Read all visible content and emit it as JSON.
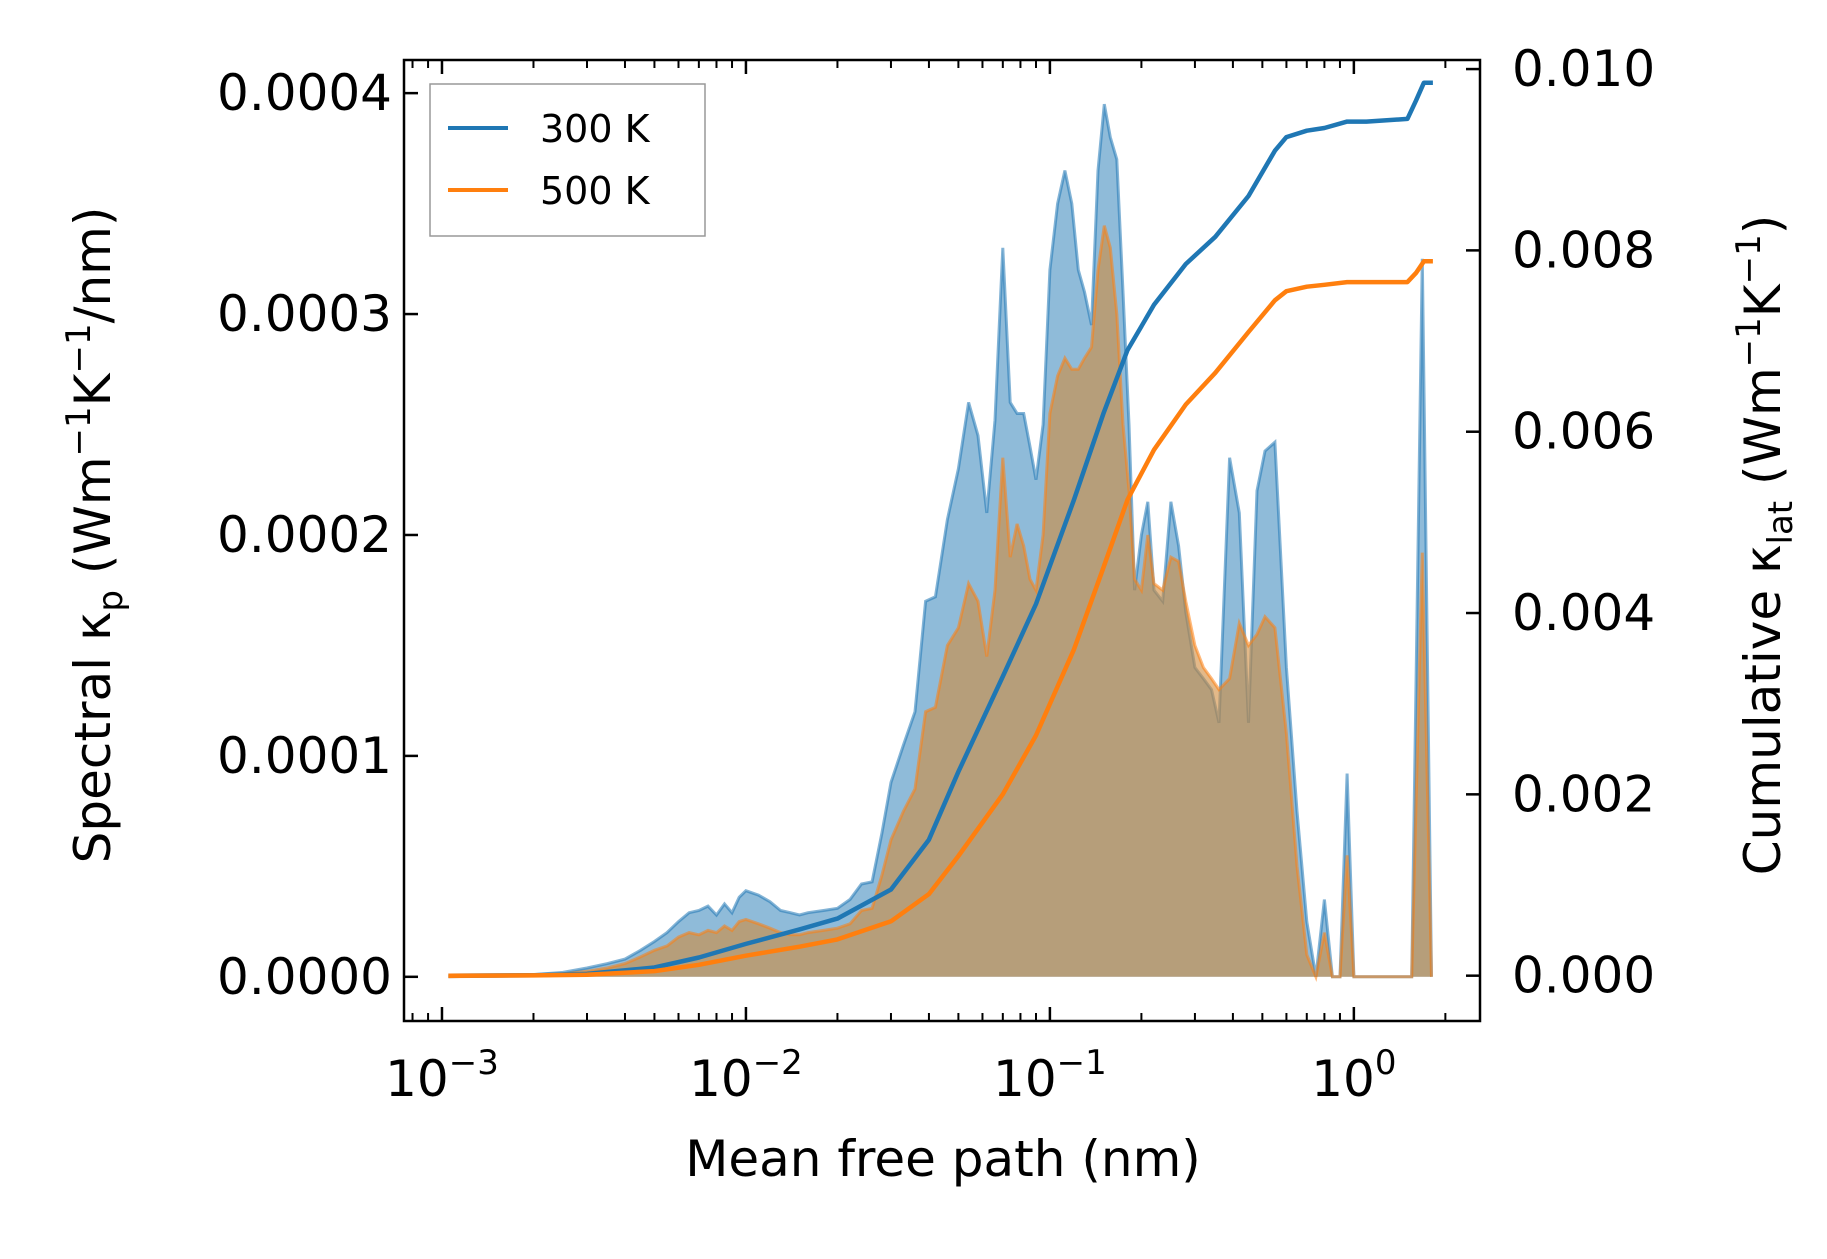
{
  "chart_data": {
    "type": "area",
    "xlabel": "Mean free path (nm)",
    "ylabel_left": {
      "main": "Spectral κ",
      "sub": "p",
      "unit_open": " (Wm",
      "sup1": "−1",
      "mid": "K",
      "sup2": "−1",
      "unit_close": "/nm)"
    },
    "ylabel_right": {
      "main": "Cumulative κ",
      "sub": "lat",
      "unit_open": " (Wm",
      "sup1": "−1",
      "mid": "K",
      "sup2": "−1",
      "unit_close": ")"
    },
    "x_scale": "log",
    "xlim": [
      0.00075,
      2.6
    ],
    "ylim_left": [
      -2e-05,
      0.000415
    ],
    "ylim_right": [
      -0.0005,
      0.0101
    ],
    "x_ticks": [
      {
        "value": 0.001,
        "base": "10",
        "exp": "−3"
      },
      {
        "value": 0.01,
        "base": "10",
        "exp": "−2"
      },
      {
        "value": 0.1,
        "base": "10",
        "exp": "−1"
      },
      {
        "value": 1,
        "base": "10",
        "exp": "0"
      }
    ],
    "y_ticks_left": [
      {
        "value": 0,
        "label": "0.0000"
      },
      {
        "value": 0.0001,
        "label": "0.0001"
      },
      {
        "value": 0.0002,
        "label": "0.0002"
      },
      {
        "value": 0.0003,
        "label": "0.0003"
      },
      {
        "value": 0.0004,
        "label": "0.0004"
      }
    ],
    "y_ticks_right": [
      {
        "value": 0,
        "label": "0.000"
      },
      {
        "value": 0.002,
        "label": "0.002"
      },
      {
        "value": 0.004,
        "label": "0.004"
      },
      {
        "value": 0.006,
        "label": "0.006"
      },
      {
        "value": 0.008,
        "label": "0.008"
      },
      {
        "value": 0.01,
        "label": "0.010"
      }
    ],
    "legend": {
      "placement": "top-left",
      "entries": [
        "300 K",
        "500 K"
      ]
    },
    "series": [
      {
        "name": "300 K",
        "color": "#1f77b4",
        "fill": "#1f77b4",
        "fill_alpha": 0.5,
        "spectral_points": [
          [
            0.00105,
            0.0
          ],
          [
            0.0015,
            5e-07
          ],
          [
            0.002,
            1e-06
          ],
          [
            0.0025,
            2e-06
          ],
          [
            0.003,
            4e-06
          ],
          [
            0.0035,
            6e-06
          ],
          [
            0.004,
            8e-06
          ],
          [
            0.0045,
            1.2e-05
          ],
          [
            0.005,
            1.6e-05
          ],
          [
            0.0055,
            2e-05
          ],
          [
            0.006,
            2.5e-05
          ],
          [
            0.0065,
            2.9e-05
          ],
          [
            0.007,
            3e-05
          ],
          [
            0.0075,
            3.2e-05
          ],
          [
            0.008,
            2.8e-05
          ],
          [
            0.0085,
            3.3e-05
          ],
          [
            0.009,
            2.9e-05
          ],
          [
            0.0095,
            3.6e-05
          ],
          [
            0.01,
            3.9e-05
          ],
          [
            0.011,
            3.7e-05
          ],
          [
            0.012,
            3.4e-05
          ],
          [
            0.013,
            3e-05
          ],
          [
            0.014,
            2.9e-05
          ],
          [
            0.015,
            2.8e-05
          ],
          [
            0.016,
            2.9e-05
          ],
          [
            0.018,
            3e-05
          ],
          [
            0.02,
            3.1e-05
          ],
          [
            0.022,
            3.5e-05
          ],
          [
            0.024,
            4.2e-05
          ],
          [
            0.026,
            4.3e-05
          ],
          [
            0.028,
            6.5e-05
          ],
          [
            0.03,
            8.8e-05
          ],
          [
            0.033,
            0.000105
          ],
          [
            0.036,
            0.00012
          ],
          [
            0.039,
            0.00017
          ],
          [
            0.042,
            0.000172
          ],
          [
            0.046,
            0.000207
          ],
          [
            0.05,
            0.00023
          ],
          [
            0.054,
            0.00026
          ],
          [
            0.058,
            0.000245
          ],
          [
            0.062,
            0.00021
          ],
          [
            0.066,
            0.000252
          ],
          [
            0.07,
            0.00033
          ],
          [
            0.074,
            0.00026
          ],
          [
            0.078,
            0.000255
          ],
          [
            0.082,
            0.000255
          ],
          [
            0.086,
            0.00024
          ],
          [
            0.09,
            0.000225
          ],
          [
            0.095,
            0.00025
          ],
          [
            0.1,
            0.00032
          ],
          [
            0.106,
            0.00035
          ],
          [
            0.112,
            0.000365
          ],
          [
            0.118,
            0.00035
          ],
          [
            0.124,
            0.00032
          ],
          [
            0.13,
            0.00031
          ],
          [
            0.137,
            0.000295
          ],
          [
            0.144,
            0.000365
          ],
          [
            0.151,
            0.000395
          ],
          [
            0.158,
            0.00038
          ],
          [
            0.166,
            0.00037
          ],
          [
            0.174,
            0.00031
          ],
          [
            0.182,
            0.00025
          ],
          [
            0.19,
            0.000175
          ],
          [
            0.2,
            0.0002
          ],
          [
            0.21,
            0.000215
          ],
          [
            0.22,
            0.000175
          ],
          [
            0.235,
            0.00017
          ],
          [
            0.25,
            0.000215
          ],
          [
            0.265,
            0.000195
          ],
          [
            0.28,
            0.000165
          ],
          [
            0.3,
            0.00014
          ],
          [
            0.32,
            0.000135
          ],
          [
            0.34,
            0.00013
          ],
          [
            0.36,
            0.000115
          ],
          [
            0.39,
            0.000235
          ],
          [
            0.42,
            0.00021
          ],
          [
            0.45,
            0.000115
          ],
          [
            0.48,
            0.00022
          ],
          [
            0.51,
            0.000238
          ],
          [
            0.55,
            0.000242
          ],
          [
            0.6,
            0.00014
          ],
          [
            0.65,
            7.5e-05
          ],
          [
            0.7,
            2.5e-05
          ],
          [
            0.75,
            0.0
          ],
          [
            0.8,
            3.5e-05
          ],
          [
            0.85,
            0.0
          ],
          [
            0.9,
            0.0
          ],
          [
            0.95,
            9.2e-05
          ],
          [
            1.0,
            0.0
          ],
          [
            1.4,
            0.0
          ],
          [
            1.55,
            0.0
          ],
          [
            1.68,
            0.000325
          ],
          [
            1.8,
            0.0
          ]
        ],
        "cumulative_points": [
          [
            0.00105,
            0.0
          ],
          [
            0.002,
            5e-06
          ],
          [
            0.003,
            2e-05
          ],
          [
            0.005,
            9e-05
          ],
          [
            0.007,
            0.0002
          ],
          [
            0.01,
            0.00035
          ],
          [
            0.015,
            0.00051
          ],
          [
            0.02,
            0.00063
          ],
          [
            0.03,
            0.00095
          ],
          [
            0.04,
            0.0015
          ],
          [
            0.05,
            0.00225
          ],
          [
            0.07,
            0.0033
          ],
          [
            0.09,
            0.0041
          ],
          [
            0.12,
            0.00525
          ],
          [
            0.15,
            0.0062
          ],
          [
            0.18,
            0.0069
          ],
          [
            0.22,
            0.0074
          ],
          [
            0.28,
            0.00785
          ],
          [
            0.35,
            0.00815
          ],
          [
            0.45,
            0.0086
          ],
          [
            0.55,
            0.0091
          ],
          [
            0.6,
            0.00925
          ],
          [
            0.7,
            0.00932
          ],
          [
            0.8,
            0.00935
          ],
          [
            0.95,
            0.00942
          ],
          [
            1.1,
            0.00942
          ],
          [
            1.5,
            0.00945
          ],
          [
            1.6,
            0.00965
          ],
          [
            1.7,
            0.00985
          ],
          [
            1.82,
            0.00985
          ]
        ]
      },
      {
        "name": "500 K",
        "color": "#ff7f0e",
        "fill": "#d08a3a",
        "fill_alpha": 0.6,
        "spectral_points": [
          [
            0.00105,
            0.0
          ],
          [
            0.0015,
            3e-07
          ],
          [
            0.002,
            6e-07
          ],
          [
            0.0025,
            1.2e-06
          ],
          [
            0.003,
            2.5e-06
          ],
          [
            0.0035,
            4e-06
          ],
          [
            0.004,
            6e-06
          ],
          [
            0.0045,
            9e-06
          ],
          [
            0.005,
            1.2e-05
          ],
          [
            0.0055,
            1.4e-05
          ],
          [
            0.006,
            1.8e-05
          ],
          [
            0.0065,
            2e-05
          ],
          [
            0.007,
            1.9e-05
          ],
          [
            0.0075,
            2.1e-05
          ],
          [
            0.008,
            2e-05
          ],
          [
            0.0085,
            2.3e-05
          ],
          [
            0.009,
            2.1e-05
          ],
          [
            0.0095,
            2.5e-05
          ],
          [
            0.01,
            2.6e-05
          ],
          [
            0.011,
            2.4e-05
          ],
          [
            0.012,
            2.2e-05
          ],
          [
            0.013,
            2e-05
          ],
          [
            0.014,
            1.9e-05
          ],
          [
            0.015,
            1.9e-05
          ],
          [
            0.016,
            2e-05
          ],
          [
            0.018,
            2.1e-05
          ],
          [
            0.02,
            2.2e-05
          ],
          [
            0.022,
            2.4e-05
          ],
          [
            0.024,
            3e-05
          ],
          [
            0.026,
            3.1e-05
          ],
          [
            0.028,
            4.6e-05
          ],
          [
            0.03,
            6.2e-05
          ],
          [
            0.033,
            7.5e-05
          ],
          [
            0.036,
            8.5e-05
          ],
          [
            0.039,
            0.00012
          ],
          [
            0.042,
            0.000122
          ],
          [
            0.046,
            0.00015
          ],
          [
            0.05,
            0.000158
          ],
          [
            0.054,
            0.000178
          ],
          [
            0.058,
            0.00017
          ],
          [
            0.062,
            0.000145
          ],
          [
            0.066,
            0.000175
          ],
          [
            0.07,
            0.000235
          ],
          [
            0.074,
            0.00019
          ],
          [
            0.078,
            0.000205
          ],
          [
            0.082,
            0.000195
          ],
          [
            0.086,
            0.00018
          ],
          [
            0.09,
            0.000175
          ],
          [
            0.095,
            0.0002
          ],
          [
            0.1,
            0.000255
          ],
          [
            0.106,
            0.000272
          ],
          [
            0.112,
            0.00028
          ],
          [
            0.118,
            0.000275
          ],
          [
            0.124,
            0.000275
          ],
          [
            0.13,
            0.00028
          ],
          [
            0.137,
            0.000285
          ],
          [
            0.144,
            0.00032
          ],
          [
            0.151,
            0.00034
          ],
          [
            0.158,
            0.00033
          ],
          [
            0.166,
            0.0003
          ],
          [
            0.174,
            0.00025
          ],
          [
            0.182,
            0.00022
          ],
          [
            0.19,
            0.00018
          ],
          [
            0.2,
            0.000175
          ],
          [
            0.21,
            0.0002
          ],
          [
            0.22,
            0.000178
          ],
          [
            0.235,
            0.000175
          ],
          [
            0.25,
            0.00019
          ],
          [
            0.265,
            0.000188
          ],
          [
            0.28,
            0.00017
          ],
          [
            0.3,
            0.00015
          ],
          [
            0.32,
            0.00014
          ],
          [
            0.34,
            0.000135
          ],
          [
            0.36,
            0.00013
          ],
          [
            0.39,
            0.000135
          ],
          [
            0.42,
            0.00016
          ],
          [
            0.45,
            0.00015
          ],
          [
            0.48,
            0.000155
          ],
          [
            0.51,
            0.000163
          ],
          [
            0.55,
            0.000158
          ],
          [
            0.6,
            0.00011
          ],
          [
            0.65,
            5e-05
          ],
          [
            0.7,
            1e-05
          ],
          [
            0.75,
            0.0
          ],
          [
            0.8,
            2e-05
          ],
          [
            0.85,
            0.0
          ],
          [
            0.9,
            0.0
          ],
          [
            0.95,
            5.5e-05
          ],
          [
            1.0,
            0.0
          ],
          [
            1.4,
            0.0
          ],
          [
            1.55,
            0.0
          ],
          [
            1.68,
            0.000192
          ],
          [
            1.8,
            0.0
          ]
        ],
        "cumulative_points": [
          [
            0.00105,
            0.0
          ],
          [
            0.002,
            3e-06
          ],
          [
            0.003,
            1e-05
          ],
          [
            0.005,
            5e-05
          ],
          [
            0.007,
            0.00012
          ],
          [
            0.01,
            0.00022
          ],
          [
            0.015,
            0.00032
          ],
          [
            0.02,
            0.0004
          ],
          [
            0.03,
            0.0006
          ],
          [
            0.04,
            0.0009
          ],
          [
            0.05,
            0.00132
          ],
          [
            0.07,
            0.002
          ],
          [
            0.09,
            0.00265
          ],
          [
            0.12,
            0.0036
          ],
          [
            0.15,
            0.0045
          ],
          [
            0.18,
            0.00525
          ],
          [
            0.22,
            0.0058
          ],
          [
            0.28,
            0.0063
          ],
          [
            0.35,
            0.00665
          ],
          [
            0.45,
            0.0071
          ],
          [
            0.55,
            0.00745
          ],
          [
            0.6,
            0.00755
          ],
          [
            0.7,
            0.0076
          ],
          [
            0.8,
            0.00762
          ],
          [
            0.95,
            0.00765
          ],
          [
            1.1,
            0.00765
          ],
          [
            1.5,
            0.00765
          ],
          [
            1.6,
            0.00775
          ],
          [
            1.7,
            0.00788
          ],
          [
            1.82,
            0.00788
          ]
        ]
      }
    ]
  }
}
